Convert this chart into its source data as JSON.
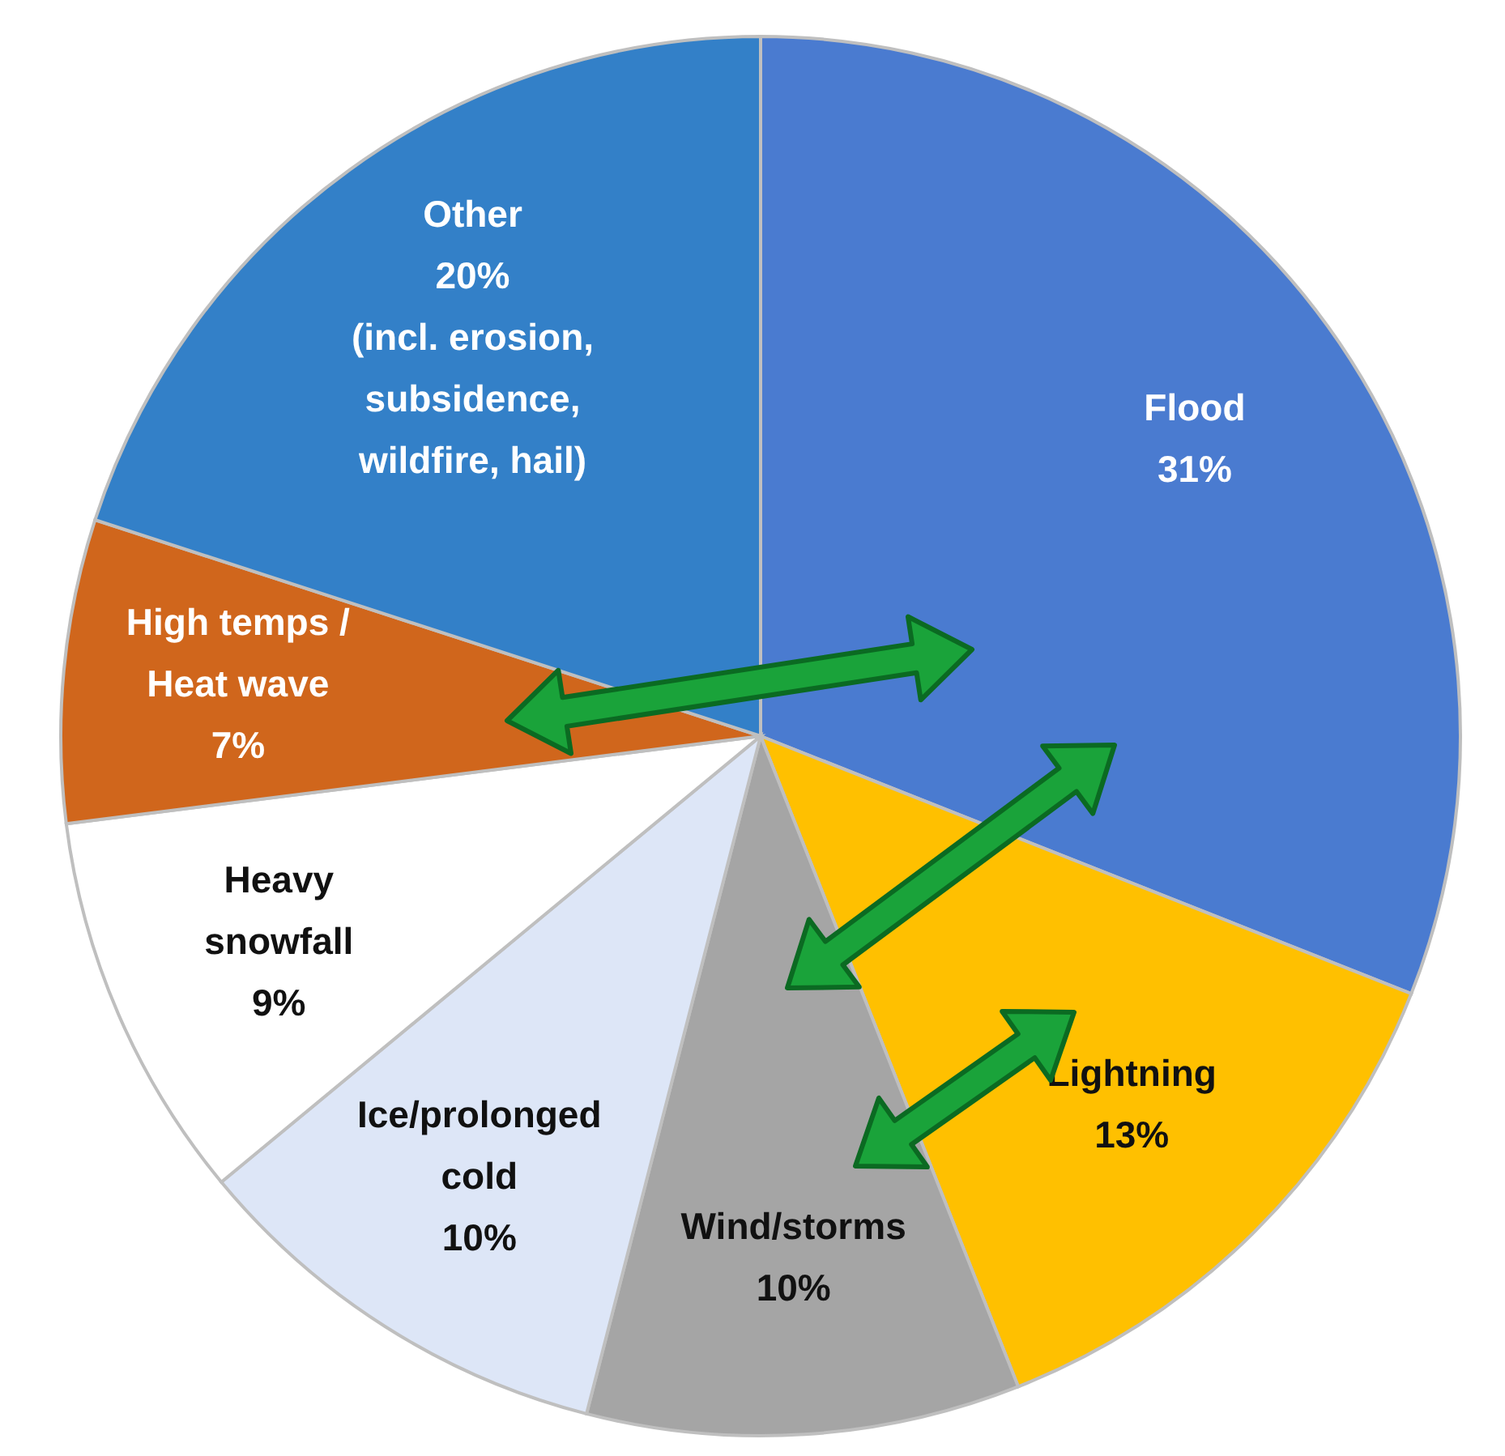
{
  "chart_data": {
    "type": "pie",
    "categories": [
      "Flood",
      "Lightning",
      "Wind/storms",
      "Ice/prolonged cold",
      "Heavy snowfall",
      "High temps / Heat wave",
      "Other"
    ],
    "values": [
      31,
      13,
      10,
      10,
      9,
      7,
      20
    ],
    "colors": [
      "#4a7bd0",
      "#ffc000",
      "#a5a5a5",
      "#dde6f7",
      "#ffffff",
      "#d0661c",
      "#3380c8"
    ],
    "value_labels": [
      "31%",
      "13%",
      "10%",
      "10%",
      "9%",
      "7%",
      "20%"
    ],
    "legend": false,
    "annotations": [
      "(incl. erosion, subsidence, wildfire, hail)"
    ]
  }
}
